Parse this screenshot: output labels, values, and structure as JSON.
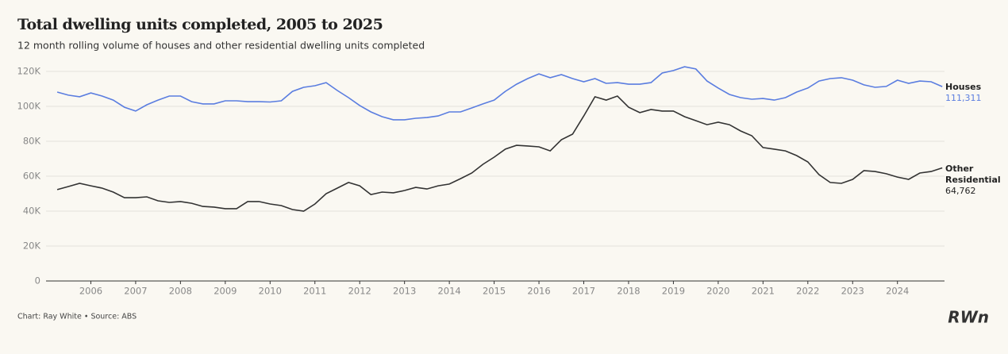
{
  "chart_data": {
    "type": "line",
    "title": "Total dwelling units completed, 2005 to 2025",
    "subtitle": "12 month rolling volume of houses and other residential dwelling units completed",
    "source": "Chart: Ray White • Source: ABS",
    "logo": "RWn",
    "x": [
      2005.25,
      2005.5,
      2005.75,
      2006,
      2006.25,
      2006.5,
      2006.75,
      2007,
      2007.25,
      2007.5,
      2007.75,
      2008,
      2008.25,
      2008.5,
      2008.75,
      2009,
      2009.25,
      2009.5,
      2009.75,
      2010,
      2010.25,
      2010.5,
      2010.75,
      2011,
      2011.25,
      2011.5,
      2011.75,
      2012,
      2012.25,
      2012.5,
      2012.75,
      2013,
      2013.25,
      2013.5,
      2013.75,
      2014,
      2014.25,
      2014.5,
      2014.75,
      2015,
      2015.25,
      2015.5,
      2015.75,
      2016,
      2016.25,
      2016.5,
      2016.75,
      2017,
      2017.25,
      2017.5,
      2017.75,
      2018,
      2018.25,
      2018.5,
      2018.75,
      2019,
      2019.25,
      2019.5,
      2019.75,
      2020,
      2020.25,
      2020.5,
      2020.75,
      2021,
      2021.25,
      2021.5,
      2021.75,
      2022,
      2022.25,
      2022.5,
      2022.75,
      2023,
      2023.25,
      2023.5,
      2023.75,
      2024,
      2024.25,
      2024.5,
      2024.75,
      2025
    ],
    "xlim": [
      2005,
      2025.05
    ],
    "xticks": [
      2006,
      2007,
      2008,
      2009,
      2010,
      2011,
      2012,
      2013,
      2014,
      2015,
      2016,
      2017,
      2018,
      2019,
      2020,
      2021,
      2022,
      2023,
      2024
    ],
    "ylim": [
      0,
      120000
    ],
    "yticks": [
      0,
      {
        "value": 20000,
        "label": "20K"
      },
      {
        "value": 40000,
        "label": "40K"
      },
      {
        "value": 60000,
        "label": "60K"
      },
      {
        "value": 80000,
        "label": "80K"
      },
      {
        "value": 100000,
        "label": "100K"
      },
      {
        "value": 120000,
        "label": "120K"
      }
    ],
    "grid": true,
    "series": [
      {
        "name": "Houses",
        "color": "#5a7de0",
        "values": [
          108200,
          106400,
          105500,
          107700,
          105900,
          103600,
          99500,
          97300,
          100900,
          103600,
          105900,
          105900,
          102700,
          101400,
          101400,
          103200,
          103200,
          102700,
          102700,
          102500,
          103200,
          108600,
          110900,
          111800,
          113600,
          109100,
          105000,
          100500,
          96800,
          94100,
          92300,
          92300,
          93200,
          93600,
          94500,
          96800,
          96800,
          99100,
          101400,
          103600,
          108600,
          112700,
          115900,
          118600,
          116400,
          118200,
          115900,
          114100,
          115900,
          113200,
          113600,
          112700,
          112700,
          113600,
          119100,
          120500,
          122700,
          121400,
          114500,
          110500,
          106800,
          105000,
          104100,
          104500,
          103600,
          105000,
          108200,
          110500,
          114500,
          115900,
          116400,
          115000,
          112300,
          110900,
          111400,
          115000,
          113200,
          114500,
          114100,
          111311
        ],
        "value_labels": [
          null,
          null,
          null,
          null,
          null,
          null,
          null,
          null,
          null,
          null,
          null,
          null,
          null,
          null,
          null,
          null,
          null,
          null,
          null,
          null,
          null,
          null,
          null,
          null,
          null,
          null,
          null,
          null,
          null,
          null,
          null,
          null,
          null,
          null,
          null,
          null,
          null,
          null,
          null,
          null,
          null,
          null,
          null,
          null,
          null,
          null,
          null,
          null,
          null,
          null,
          null,
          null,
          null,
          null,
          null,
          null,
          null,
          null,
          null,
          null,
          null,
          null,
          null,
          null,
          null,
          null,
          null,
          null,
          null,
          null,
          null,
          null,
          null,
          null,
          null,
          null,
          null,
          null,
          null,
          "111,311"
        ]
      },
      {
        "name": "Other Residential",
        "color": "#333333",
        "values": [
          52300,
          54100,
          55900,
          54500,
          53200,
          50900,
          47700,
          47700,
          48200,
          45900,
          45000,
          45500,
          44500,
          42700,
          42300,
          41400,
          41400,
          45500,
          45500,
          44100,
          43200,
          40900,
          40000,
          44100,
          50000,
          53200,
          56400,
          54500,
          49500,
          50900,
          50500,
          51800,
          53600,
          52700,
          54500,
          55500,
          58600,
          61800,
          66800,
          70900,
          75500,
          77700,
          77300,
          76800,
          74500,
          80900,
          84100,
          94500,
          105500,
          103600,
          105900,
          99500,
          96400,
          98200,
          97300,
          97300,
          94100,
          91800,
          89500,
          90900,
          89500,
          85900,
          83200,
          76400,
          75500,
          74500,
          71800,
          68200,
          60900,
          56400,
          55900,
          58200,
          63200,
          62700,
          61400,
          59500,
          58200,
          61800,
          62700,
          64762
        ],
        "value_labels": [
          null,
          null,
          null,
          null,
          null,
          null,
          null,
          null,
          null,
          null,
          null,
          null,
          null,
          null,
          null,
          null,
          null,
          null,
          null,
          null,
          null,
          null,
          null,
          null,
          null,
          null,
          null,
          null,
          null,
          null,
          null,
          null,
          null,
          null,
          null,
          null,
          null,
          null,
          null,
          null,
          null,
          null,
          null,
          null,
          null,
          null,
          null,
          null,
          null,
          null,
          null,
          null,
          null,
          null,
          null,
          null,
          null,
          null,
          null,
          null,
          null,
          null,
          null,
          null,
          null,
          null,
          null,
          null,
          null,
          null,
          null,
          null,
          null,
          null,
          null,
          null,
          null,
          null,
          null,
          "64,762"
        ]
      }
    ]
  }
}
